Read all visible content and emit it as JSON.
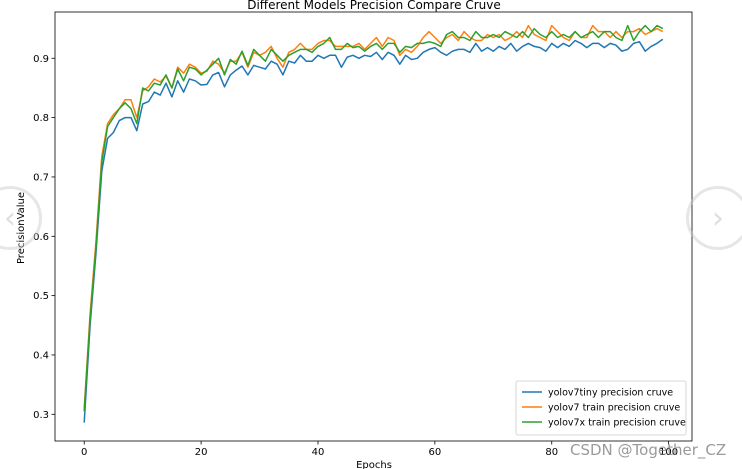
{
  "overlay": {
    "watermark": "CSDN @Together_CZ",
    "nav_prev_icon": "chevron-left-icon",
    "nav_next_icon": "chevron-right-icon"
  },
  "chart_data": {
    "type": "line",
    "title": "Different Models Precision Compare Cruve",
    "xlabel": "Epochs",
    "ylabel": "PrecisionValue",
    "xlim": [
      -5,
      104
    ],
    "ylim": [
      0.255,
      0.978
    ],
    "xticks": [
      0,
      20,
      40,
      60,
      80,
      100
    ],
    "yticks": [
      0.3,
      0.4,
      0.5,
      0.6,
      0.7,
      0.8,
      0.9
    ],
    "grid": false,
    "legend_position": "lower-right",
    "x": [
      0,
      1,
      2,
      3,
      4,
      5,
      6,
      7,
      8,
      9,
      10,
      11,
      12,
      13,
      14,
      15,
      16,
      17,
      18,
      19,
      20,
      21,
      22,
      23,
      24,
      25,
      26,
      27,
      28,
      29,
      30,
      31,
      32,
      33,
      34,
      35,
      36,
      37,
      38,
      39,
      40,
      41,
      42,
      43,
      44,
      45,
      46,
      47,
      48,
      49,
      50,
      51,
      52,
      53,
      54,
      55,
      56,
      57,
      58,
      59,
      60,
      61,
      62,
      63,
      64,
      65,
      66,
      67,
      68,
      69,
      70,
      71,
      72,
      73,
      74,
      75,
      76,
      77,
      78,
      79,
      80,
      81,
      82,
      83,
      84,
      85,
      86,
      87,
      88,
      89,
      90,
      91,
      92,
      93,
      94,
      95,
      96,
      97,
      98,
      99
    ],
    "series": [
      {
        "name": "yolov7tiny precision cruve",
        "color": "#1f77b4",
        "values": [
          0.286,
          0.45,
          0.57,
          0.71,
          0.765,
          0.775,
          0.795,
          0.8,
          0.8,
          0.778,
          0.823,
          0.827,
          0.843,
          0.838,
          0.858,
          0.835,
          0.862,
          0.843,
          0.865,
          0.862,
          0.855,
          0.856,
          0.872,
          0.876,
          0.852,
          0.872,
          0.88,
          0.887,
          0.872,
          0.888,
          0.885,
          0.882,
          0.895,
          0.89,
          0.872,
          0.895,
          0.892,
          0.905,
          0.895,
          0.895,
          0.905,
          0.9,
          0.905,
          0.905,
          0.885,
          0.902,
          0.905,
          0.9,
          0.905,
          0.903,
          0.91,
          0.898,
          0.91,
          0.905,
          0.89,
          0.905,
          0.898,
          0.9,
          0.91,
          0.915,
          0.918,
          0.91,
          0.905,
          0.912,
          0.915,
          0.915,
          0.91,
          0.925,
          0.912,
          0.918,
          0.912,
          0.92,
          0.915,
          0.925,
          0.912,
          0.92,
          0.925,
          0.92,
          0.918,
          0.912,
          0.925,
          0.918,
          0.925,
          0.92,
          0.93,
          0.925,
          0.918,
          0.925,
          0.925,
          0.918,
          0.925,
          0.922,
          0.912,
          0.915,
          0.925,
          0.928,
          0.912,
          0.92,
          0.925,
          0.932
        ]
      },
      {
        "name": "yolov7 train precision cruve",
        "color": "#ff7f0e",
        "values": [
          0.31,
          0.47,
          0.59,
          0.735,
          0.79,
          0.805,
          0.815,
          0.83,
          0.83,
          0.8,
          0.845,
          0.852,
          0.865,
          0.86,
          0.87,
          0.85,
          0.885,
          0.875,
          0.89,
          0.885,
          0.875,
          0.878,
          0.895,
          0.89,
          0.875,
          0.895,
          0.895,
          0.91,
          0.885,
          0.91,
          0.905,
          0.91,
          0.92,
          0.9,
          0.885,
          0.91,
          0.915,
          0.925,
          0.915,
          0.915,
          0.925,
          0.93,
          0.93,
          0.92,
          0.92,
          0.92,
          0.92,
          0.925,
          0.915,
          0.925,
          0.935,
          0.92,
          0.935,
          0.93,
          0.905,
          0.915,
          0.91,
          0.92,
          0.935,
          0.945,
          0.935,
          0.925,
          0.935,
          0.94,
          0.93,
          0.945,
          0.935,
          0.93,
          0.93,
          0.94,
          0.935,
          0.94,
          0.93,
          0.935,
          0.945,
          0.935,
          0.955,
          0.94,
          0.935,
          0.93,
          0.955,
          0.945,
          0.935,
          0.93,
          0.945,
          0.935,
          0.935,
          0.955,
          0.945,
          0.945,
          0.935,
          0.945,
          0.935,
          0.945,
          0.945,
          0.95,
          0.94,
          0.945,
          0.95,
          0.945
        ]
      },
      {
        "name": "yolov7x train precision cruve",
        "color": "#2ca02c",
        "values": [
          0.305,
          0.46,
          0.58,
          0.725,
          0.785,
          0.8,
          0.815,
          0.825,
          0.815,
          0.79,
          0.85,
          0.845,
          0.858,
          0.855,
          0.872,
          0.85,
          0.882,
          0.862,
          0.885,
          0.882,
          0.872,
          0.88,
          0.89,
          0.9,
          0.872,
          0.898,
          0.89,
          0.912,
          0.888,
          0.915,
          0.905,
          0.895,
          0.915,
          0.905,
          0.895,
          0.905,
          0.91,
          0.915,
          0.915,
          0.91,
          0.92,
          0.925,
          0.935,
          0.915,
          0.915,
          0.925,
          0.918,
          0.92,
          0.912,
          0.92,
          0.925,
          0.915,
          0.925,
          0.925,
          0.91,
          0.92,
          0.918,
          0.925,
          0.925,
          0.928,
          0.925,
          0.92,
          0.94,
          0.945,
          0.935,
          0.935,
          0.93,
          0.945,
          0.935,
          0.935,
          0.94,
          0.935,
          0.945,
          0.94,
          0.935,
          0.945,
          0.935,
          0.95,
          0.94,
          0.935,
          0.945,
          0.935,
          0.94,
          0.935,
          0.945,
          0.935,
          0.94,
          0.945,
          0.935,
          0.945,
          0.945,
          0.935,
          0.93,
          0.955,
          0.93,
          0.945,
          0.955,
          0.945,
          0.955,
          0.95
        ]
      }
    ]
  }
}
